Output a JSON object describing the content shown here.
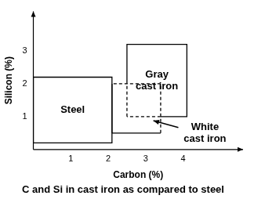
{
  "chart_data": {
    "type": "line",
    "title": "C and Si in cast iron as compared to steel",
    "x_label": "Carbon (%)",
    "y_label": "Silicon (%)",
    "xlim": [
      0,
      5.6
    ],
    "ylim": [
      0,
      4.2
    ],
    "xticks": [
      1,
      2,
      3,
      4
    ],
    "yticks": [
      1,
      2,
      3
    ],
    "grid": false,
    "series": [
      {
        "name": "Steel",
        "color": "#000000",
        "x": [
          0,
          2.1,
          2.1,
          0,
          0
        ],
        "values": [
          0.2,
          0.2,
          2.2,
          2.2,
          0.2
        ]
      },
      {
        "name": "White cast iron",
        "color": "#000000",
        "x": [
          2.1,
          3.4,
          3.4,
          2.1,
          2.1
        ],
        "values": [
          0.5,
          0.5,
          2.0,
          2.0,
          0.5
        ]
      },
      {
        "name": "Gray cast iron",
        "color": "#000000",
        "x": [
          2.5,
          2.5,
          2.5,
          4.1,
          4.1,
          3.4,
          2.5
        ],
        "values": [
          1.0,
          2.0,
          3.2,
          3.2,
          1.0,
          1.0,
          1.0
        ]
      }
    ]
  }
}
